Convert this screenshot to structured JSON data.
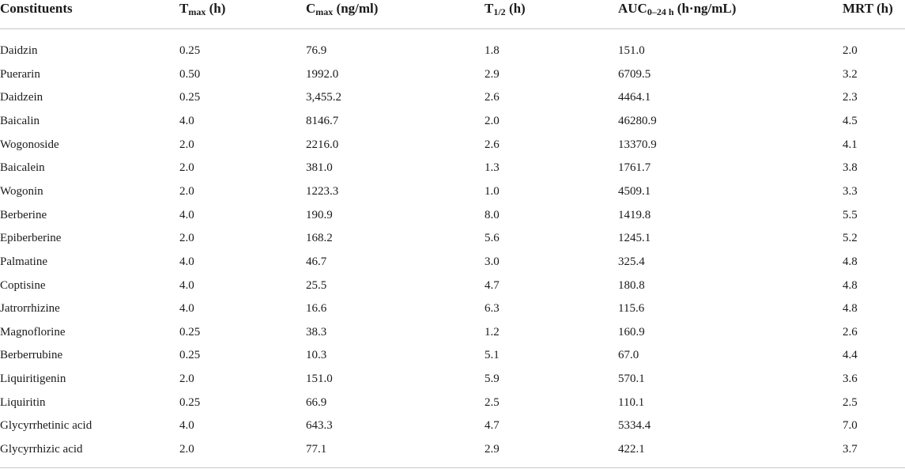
{
  "header": {
    "constituents": "Constituents",
    "tmax_main": "T",
    "tmax_sub": "max",
    "tmax_unit": " (h)",
    "cmax_main": "C",
    "cmax_sub": "max",
    "cmax_unit": " (ng/ml)",
    "thalf_main": "T",
    "thalf_sub": "1/2",
    "thalf_unit": " (h)",
    "auc_main": "AUC",
    "auc_sub": "0–24 h",
    "auc_unit": " (h·ng/mL)",
    "mrt": "MRT (h)"
  },
  "rows": [
    {
      "name": "Daidzin",
      "tmax": "0.25",
      "cmax": "76.9",
      "thalf": "1.8",
      "auc": "151.0",
      "mrt": "2.0"
    },
    {
      "name": "Puerarin",
      "tmax": "0.50",
      "cmax": "1992.0",
      "thalf": "2.9",
      "auc": "6709.5",
      "mrt": "3.2"
    },
    {
      "name": "Daidzein",
      "tmax": "0.25",
      "cmax": "3,455.2",
      "thalf": "2.6",
      "auc": "4464.1",
      "mrt": "2.3"
    },
    {
      "name": "Baicalin",
      "tmax": "4.0",
      "cmax": "8146.7",
      "thalf": "2.0",
      "auc": "46280.9",
      "mrt": "4.5"
    },
    {
      "name": "Wogonoside",
      "tmax": "2.0",
      "cmax": "2216.0",
      "thalf": "2.6",
      "auc": "13370.9",
      "mrt": "4.1"
    },
    {
      "name": "Baicalein",
      "tmax": "2.0",
      "cmax": "381.0",
      "thalf": "1.3",
      "auc": "1761.7",
      "mrt": "3.8"
    },
    {
      "name": "Wogonin",
      "tmax": "2.0",
      "cmax": "1223.3",
      "thalf": "1.0",
      "auc": "4509.1",
      "mrt": "3.3"
    },
    {
      "name": "Berberine",
      "tmax": "4.0",
      "cmax": "190.9",
      "thalf": "8.0",
      "auc": "1419.8",
      "mrt": "5.5"
    },
    {
      "name": "Epiberberine",
      "tmax": "2.0",
      "cmax": "168.2",
      "thalf": "5.6",
      "auc": "1245.1",
      "mrt": "5.2"
    },
    {
      "name": "Palmatine",
      "tmax": "4.0",
      "cmax": "46.7",
      "thalf": "3.0",
      "auc": "325.4",
      "mrt": "4.8"
    },
    {
      "name": "Coptisine",
      "tmax": "4.0",
      "cmax": "25.5",
      "thalf": "4.7",
      "auc": "180.8",
      "mrt": "4.8"
    },
    {
      "name": "Jatrorrhizine",
      "tmax": "4.0",
      "cmax": "16.6",
      "thalf": "6.3",
      "auc": "115.6",
      "mrt": "4.8"
    },
    {
      "name": "Magnoflorine",
      "tmax": "0.25",
      "cmax": "38.3",
      "thalf": "1.2",
      "auc": "160.9",
      "mrt": "2.6"
    },
    {
      "name": "Berberrubine",
      "tmax": "0.25",
      "cmax": "10.3",
      "thalf": "5.1",
      "auc": "67.0",
      "mrt": "4.4"
    },
    {
      "name": "Liquiritigenin",
      "tmax": "2.0",
      "cmax": "151.0",
      "thalf": "5.9",
      "auc": "570.1",
      "mrt": "3.6"
    },
    {
      "name": "Liquiritin",
      "tmax": "0.25",
      "cmax": "66.9",
      "thalf": "2.5",
      "auc": "110.1",
      "mrt": "2.5"
    },
    {
      "name": "Glycyrrhetinic acid",
      "tmax": "4.0",
      "cmax": "643.3",
      "thalf": "4.7",
      "auc": "5334.4",
      "mrt": "7.0"
    },
    {
      "name": "Glycyrrhizic acid",
      "tmax": "2.0",
      "cmax": "77.1",
      "thalf": "2.9",
      "auc": "422.1",
      "mrt": "3.7"
    }
  ]
}
